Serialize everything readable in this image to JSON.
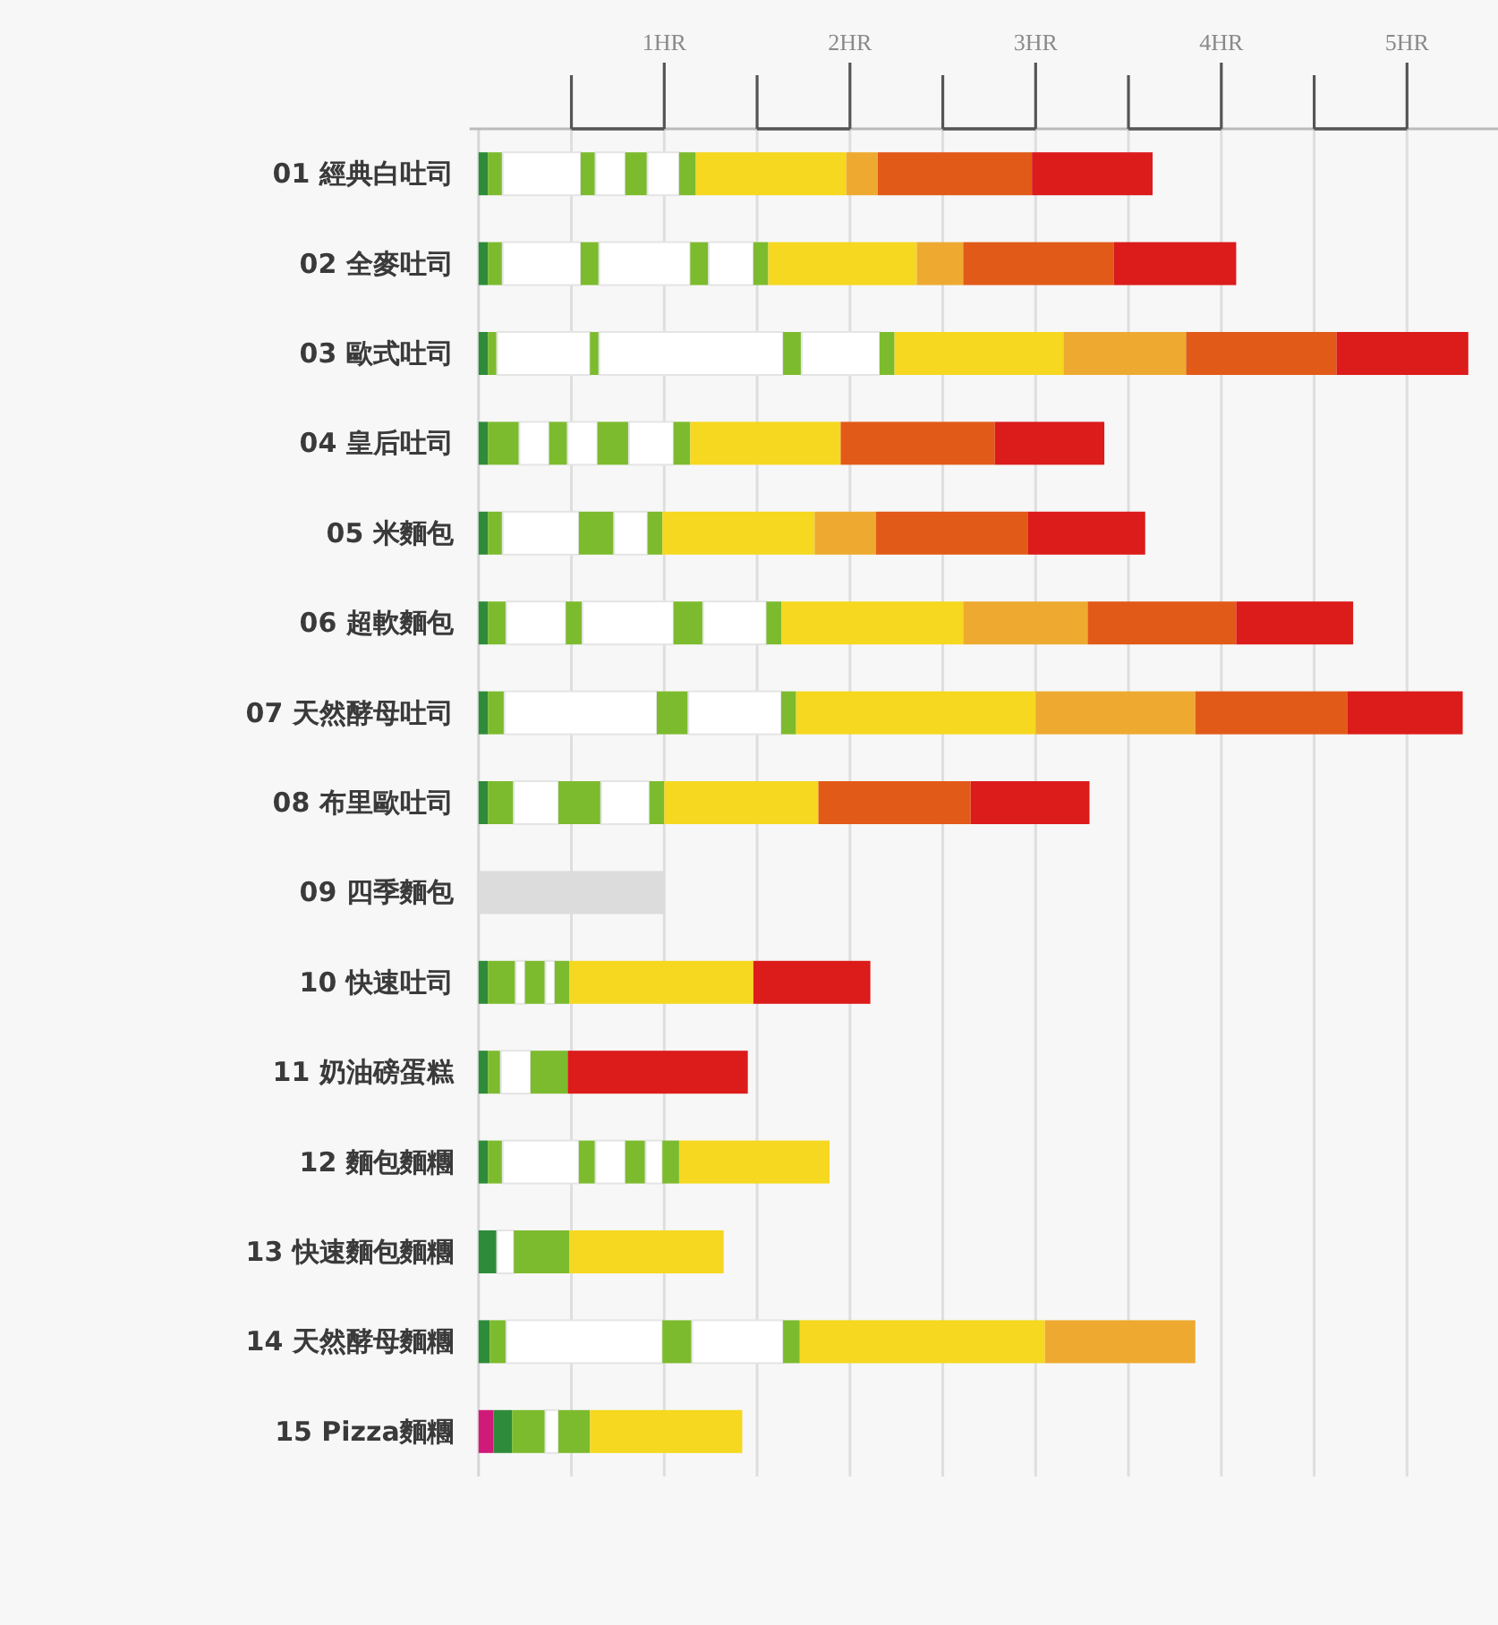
{
  "chart_data": {
    "type": "bar",
    "orientation": "horizontal",
    "stacked": true,
    "grid": "x",
    "categories": [
      "01 經典白吐司",
      "02 全麥吐司",
      "03 歐式吐司",
      "04 皇后吐司",
      "05 米麵包",
      "06 超軟麵包",
      "07 天然酵母吐司",
      "08 布里歐吐司",
      "09 四季麵包",
      "10 快速吐司",
      "11 奶油磅蛋糕",
      "12 麵包麵糰",
      "13 快速麵包麵糰",
      "14 天然酵母麵糰",
      "15 Pizza麵糰"
    ],
    "xlim": [
      0,
      5.49
    ],
    "xticks": [
      {
        "value": 0.5,
        "label": null
      },
      {
        "value": 1,
        "label": "1HR"
      },
      {
        "value": 1.5,
        "label": null
      },
      {
        "value": 2,
        "label": "2HR"
      },
      {
        "value": 2.5,
        "label": null
      },
      {
        "value": 3,
        "label": "3HR"
      },
      {
        "value": 3.5,
        "label": null
      },
      {
        "value": 4,
        "label": "4HR"
      },
      {
        "value": 4.5,
        "label": null
      },
      {
        "value": 5,
        "label": "5HR"
      }
    ],
    "series": [
      {
        "values": [
          0.05,
          0.05,
          0.05,
          0.05,
          0.05,
          0.05,
          0.05,
          0.05,
          1.0,
          0.05,
          0.05,
          0.05,
          0.1,
          0.06,
          0.08
        ],
        "colors": [
          "#2e8b3a",
          "#2e8b3a",
          "#2e8b3a",
          "#2e8b3a",
          "#2e8b3a",
          "#2e8b3a",
          "#2e8b3a",
          "#2e8b3a",
          "#dcdcdc",
          "#2e8b3a",
          "#2e8b3a",
          "#2e8b3a",
          "#2e8b3a",
          "#2e8b3a",
          "#d01a7a"
        ]
      },
      {
        "values": [
          0.08,
          0.08,
          0.05,
          0.17,
          0.08,
          0.1,
          0.09,
          0.14,
          null,
          0.15,
          0.07,
          0.08,
          0.09,
          0.09,
          0.1
        ],
        "colors": [
          "#7dbb2e",
          "#7dbb2e",
          "#7dbb2e",
          "#7dbb2e",
          "#7dbb2e",
          "#7dbb2e",
          "#7dbb2e",
          "#7dbb2e",
          null,
          "#7dbb2e",
          "#7dbb2e",
          "#7dbb2e",
          "#ffffff",
          "#7dbb2e",
          "#2e8b3a"
        ]
      },
      {
        "values": [
          0.42,
          0.42,
          0.5,
          0.16,
          0.41,
          0.32,
          0.82,
          0.24,
          null,
          0.05,
          0.16,
          0.41,
          0.3,
          0.84,
          0.18
        ],
        "colors": [
          "#ffffff",
          "#ffffff",
          "#ffffff",
          "#ffffff",
          "#ffffff",
          "#ffffff",
          "#ffffff",
          "#ffffff",
          null,
          "#ffffff",
          "#ffffff",
          "#ffffff",
          "#7dbb2e",
          "#ffffff",
          "#7dbb2e"
        ]
      },
      {
        "values": [
          0.08,
          0.1,
          0.05,
          0.1,
          0.19,
          0.09,
          0.17,
          0.23,
          null,
          0.11,
          0.2,
          0.09,
          0.83,
          0.16,
          0.07
        ],
        "colors": [
          "#7dbb2e",
          "#7dbb2e",
          "#7dbb2e",
          "#7dbb2e",
          "#7dbb2e",
          "#7dbb2e",
          "#7dbb2e",
          "#7dbb2e",
          null,
          "#7dbb2e",
          "#7dbb2e",
          "#7dbb2e",
          "#f5d81f",
          "#7dbb2e",
          "#ffffff"
        ]
      },
      {
        "values": [
          0.16,
          0.49,
          0.99,
          0.16,
          0.18,
          0.49,
          0.5,
          0.26,
          null,
          0.05,
          0.97,
          0.16,
          null,
          0.49,
          0.17
        ],
        "colors": [
          "#ffffff",
          "#ffffff",
          "#ffffff",
          "#ffffff",
          "#ffffff",
          "#ffffff",
          "#ffffff",
          "#ffffff",
          null,
          "#ffffff",
          "#dc1b1b",
          "#ffffff",
          null,
          "#ffffff",
          "#7dbb2e"
        ]
      },
      {
        "values": [
          0.12,
          0.1,
          0.1,
          0.17,
          0.08,
          0.16,
          0.08,
          0.08,
          null,
          0.08,
          null,
          0.11,
          null,
          0.09,
          0.82
        ],
        "colors": [
          "#7dbb2e",
          "#7dbb2e",
          "#7dbb2e",
          "#7dbb2e",
          "#7dbb2e",
          "#7dbb2e",
          "#7dbb2e",
          "#7dbb2e",
          null,
          "#7dbb2e",
          null,
          "#7dbb2e",
          null,
          "#7dbb2e",
          "#f5d81f"
        ]
      },
      {
        "values": [
          0.17,
          0.24,
          0.42,
          0.24,
          0.82,
          0.34,
          1.29,
          0.83,
          null,
          0.99,
          null,
          0.09,
          null,
          1.32,
          null
        ],
        "colors": [
          "#ffffff",
          "#ffffff",
          "#ffffff",
          "#ffffff",
          "#f5d81f",
          "#ffffff",
          "#f5d81f",
          "#f5d81f",
          null,
          "#f5d81f",
          null,
          "#ffffff",
          null,
          "#f5d81f",
          null
        ]
      },
      {
        "values": [
          0.09,
          0.08,
          0.08,
          0.09,
          0.33,
          0.08,
          0.86,
          0.82,
          null,
          0.63,
          null,
          0.09,
          null,
          0.81,
          null
        ],
        "colors": [
          "#7dbb2e",
          "#7dbb2e",
          "#7dbb2e",
          "#7dbb2e",
          "#eeaa30",
          "#7dbb2e",
          "#eeaa30",
          "#e25a18",
          null,
          "#dc1b1b",
          null,
          "#7dbb2e",
          null,
          "#eeaa30",
          null
        ]
      },
      {
        "values": [
          0.81,
          0.8,
          0.91,
          0.81,
          0.82,
          0.98,
          0.82,
          0.64,
          null,
          null,
          null,
          0.81,
          null,
          null,
          null
        ],
        "colors": [
          "#f5d81f",
          "#f5d81f",
          "#f5d81f",
          "#f5d81f",
          "#e25a18",
          "#f5d81f",
          "#e25a18",
          "#dc1b1b",
          null,
          null,
          null,
          "#f5d81f",
          null,
          null,
          null
        ]
      },
      {
        "values": [
          0.17,
          0.25,
          0.66,
          0.83,
          0.63,
          0.67,
          0.62,
          null,
          null,
          null,
          null,
          null,
          null,
          null,
          null
        ],
        "colors": [
          "#eeaa30",
          "#eeaa30",
          "#eeaa30",
          "#e25a18",
          "#dc1b1b",
          "#eeaa30",
          "#dc1b1b",
          null,
          null,
          null,
          null,
          null,
          null,
          null,
          null
        ]
      },
      {
        "values": [
          0.83,
          0.81,
          0.81,
          0.59,
          null,
          0.8,
          null,
          null,
          null,
          null,
          null,
          null,
          null,
          null,
          null
        ],
        "colors": [
          "#e25a18",
          "#e25a18",
          "#e25a18",
          "#dc1b1b",
          null,
          "#e25a18",
          null,
          null,
          null,
          null,
          null,
          null,
          null,
          null,
          null
        ]
      },
      {
        "values": [
          0.65,
          0.66,
          0.71,
          null,
          null,
          0.63,
          null,
          null,
          null,
          null,
          null,
          null,
          null,
          null,
          null
        ],
        "colors": [
          "#dc1b1b",
          "#dc1b1b",
          "#dc1b1b",
          null,
          null,
          "#dc1b1b",
          null,
          null,
          null,
          null,
          null,
          null,
          null,
          null,
          null
        ]
      }
    ]
  }
}
